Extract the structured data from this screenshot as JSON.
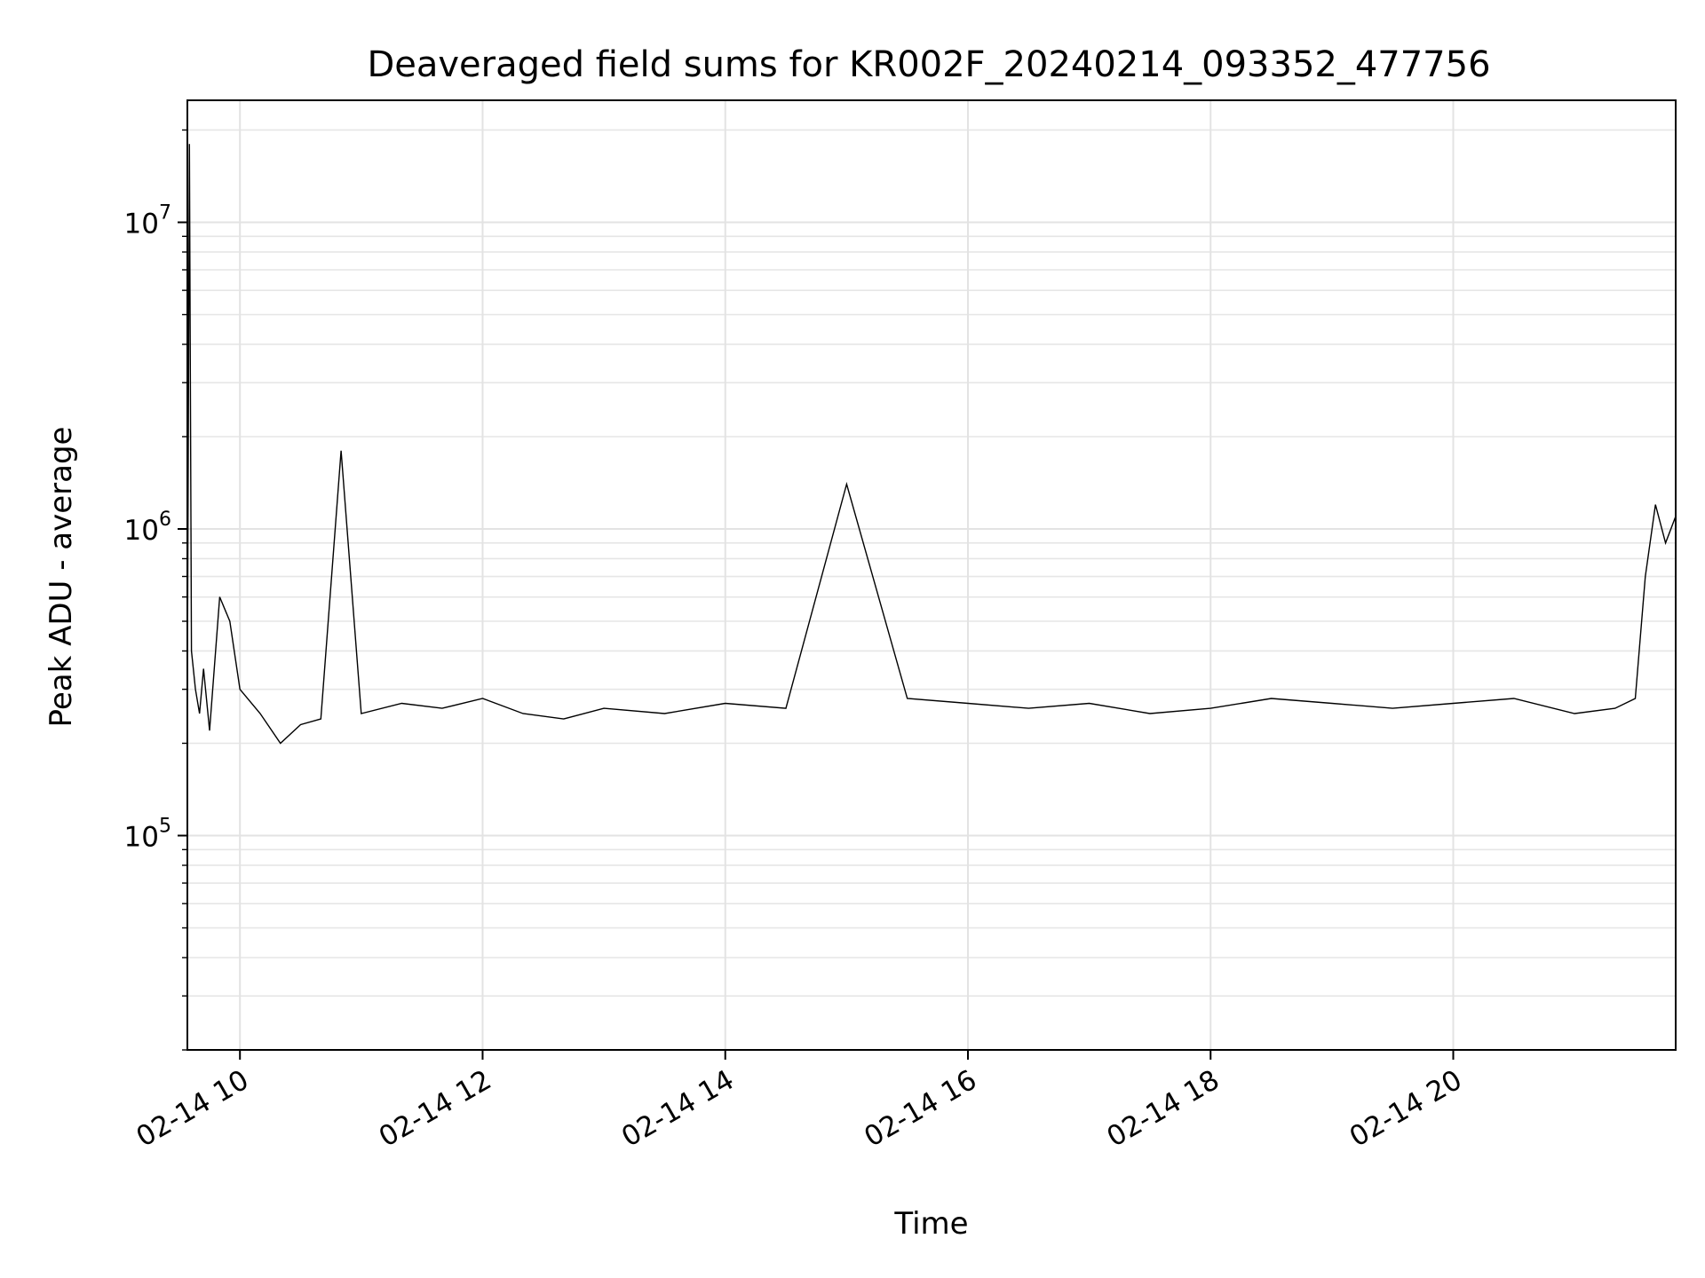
{
  "chart_data": {
    "type": "line",
    "title": "Deaveraged field sums for KR002F_20240214_093352_477756",
    "xlabel": "Time",
    "ylabel": "Peak ADU - average",
    "yscale": "log",
    "xlim": [
      "2024-02-14 09:34",
      "2024-02-14 21:50"
    ],
    "ylim": [
      20000,
      25000000
    ],
    "grid": true,
    "line_color": "#000000",
    "x_ticks": [
      {
        "value": "2024-02-14 10:00",
        "label": "02-14 10"
      },
      {
        "value": "2024-02-14 12:00",
        "label": "02-14 12"
      },
      {
        "value": "2024-02-14 14:00",
        "label": "02-14 14"
      },
      {
        "value": "2024-02-14 16:00",
        "label": "02-14 16"
      },
      {
        "value": "2024-02-14 18:00",
        "label": "02-14 18"
      },
      {
        "value": "2024-02-14 20:00",
        "label": "02-14 20"
      }
    ],
    "y_ticks": [
      {
        "value": 100000,
        "base": "10",
        "exp": "5"
      },
      {
        "value": 1000000,
        "base": "10",
        "exp": "6"
      },
      {
        "value": 10000000,
        "base": "10",
        "exp": "7"
      }
    ],
    "series": [
      {
        "x": [
          "2024-02-14 09:34",
          "2024-02-14 09:35",
          "2024-02-14 09:36",
          "2024-02-14 09:38",
          "2024-02-14 09:40",
          "2024-02-14 09:42",
          "2024-02-14 09:45",
          "2024-02-14 09:50",
          "2024-02-14 09:55",
          "2024-02-14 10:00",
          "2024-02-14 10:10",
          "2024-02-14 10:20",
          "2024-02-14 10:30",
          "2024-02-14 10:40",
          "2024-02-14 10:50",
          "2024-02-14 11:00",
          "2024-02-14 11:20",
          "2024-02-14 11:40",
          "2024-02-14 12:00",
          "2024-02-14 12:20",
          "2024-02-14 12:40",
          "2024-02-14 13:00",
          "2024-02-14 13:30",
          "2024-02-14 14:00",
          "2024-02-14 14:30",
          "2024-02-14 15:00",
          "2024-02-14 15:30",
          "2024-02-14 16:00",
          "2024-02-14 16:30",
          "2024-02-14 17:00",
          "2024-02-14 17:30",
          "2024-02-14 18:00",
          "2024-02-14 18:30",
          "2024-02-14 19:00",
          "2024-02-14 19:30",
          "2024-02-14 20:00",
          "2024-02-14 20:30",
          "2024-02-14 21:00",
          "2024-02-14 21:20",
          "2024-02-14 21:30",
          "2024-02-14 21:35",
          "2024-02-14 21:40",
          "2024-02-14 21:45",
          "2024-02-14 21:50"
        ],
        "y": [
          300000,
          18000000,
          400000,
          300000,
          250000,
          350000,
          220000,
          600000,
          500000,
          300000,
          250000,
          200000,
          230000,
          240000,
          1800000,
          250000,
          270000,
          260000,
          280000,
          250000,
          240000,
          260000,
          250000,
          270000,
          260000,
          1400000,
          280000,
          270000,
          260000,
          270000,
          250000,
          260000,
          280000,
          270000,
          260000,
          270000,
          280000,
          250000,
          260000,
          280000,
          700000,
          1200000,
          900000,
          1100000
        ]
      }
    ]
  }
}
